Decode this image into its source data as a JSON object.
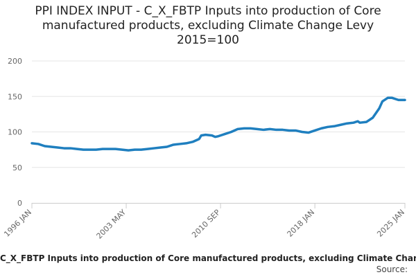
{
  "chart_data": {
    "type": "line",
    "title_lines": [
      "PPI INDEX INPUT - C_X_FBTP Inputs into production of Core",
      "manufactured products, excluding Climate Change Levy",
      "2015=100"
    ],
    "xlabel": "",
    "ylabel": "",
    "ylim": [
      0,
      200
    ],
    "y_ticks": [
      "0",
      "50",
      "100",
      "150",
      "200"
    ],
    "x_tick_labels": [
      "1996 JAN",
      "2003 MAY",
      "2010 SEP",
      "2018 JAN",
      "2025 JAN"
    ],
    "x_range": [
      "1996 JAN",
      "2025 JAN"
    ],
    "grid": true,
    "series": [
      {
        "name": "C_X_FBTP Inputs into production of Core manufactured products, excluding Climate Change Levy",
        "color": "#1f7fbf",
        "points": [
          [
            "1996-01",
            84
          ],
          [
            "1996-07",
            83
          ],
          [
            "1997-01",
            80
          ],
          [
            "1997-07",
            79
          ],
          [
            "1998-01",
            78
          ],
          [
            "1998-07",
            77
          ],
          [
            "1999-01",
            77
          ],
          [
            "1999-07",
            76
          ],
          [
            "2000-01",
            75
          ],
          [
            "2000-07",
            75
          ],
          [
            "2001-01",
            75
          ],
          [
            "2001-07",
            76
          ],
          [
            "2002-01",
            76
          ],
          [
            "2002-07",
            76
          ],
          [
            "2003-01",
            75
          ],
          [
            "2003-07",
            74
          ],
          [
            "2004-01",
            75
          ],
          [
            "2004-07",
            75
          ],
          [
            "2005-01",
            76
          ],
          [
            "2005-07",
            77
          ],
          [
            "2006-01",
            78
          ],
          [
            "2006-07",
            79
          ],
          [
            "2007-01",
            82
          ],
          [
            "2007-07",
            83
          ],
          [
            "2008-01",
            84
          ],
          [
            "2008-07",
            86
          ],
          [
            "2009-01",
            90
          ],
          [
            "2009-03",
            95
          ],
          [
            "2009-07",
            96
          ],
          [
            "2010-01",
            95
          ],
          [
            "2010-04",
            93
          ],
          [
            "2010-07",
            94
          ],
          [
            "2011-01",
            97
          ],
          [
            "2011-07",
            100
          ],
          [
            "2012-01",
            104
          ],
          [
            "2012-07",
            105
          ],
          [
            "2013-01",
            105
          ],
          [
            "2013-07",
            104
          ],
          [
            "2014-01",
            103
          ],
          [
            "2014-07",
            104
          ],
          [
            "2015-01",
            103
          ],
          [
            "2015-07",
            103
          ],
          [
            "2016-01",
            102
          ],
          [
            "2016-07",
            102
          ],
          [
            "2017-01",
            100
          ],
          [
            "2017-07",
            99
          ],
          [
            "2018-01",
            102
          ],
          [
            "2018-07",
            105
          ],
          [
            "2019-01",
            107
          ],
          [
            "2019-07",
            108
          ],
          [
            "2020-01",
            110
          ],
          [
            "2020-07",
            112
          ],
          [
            "2021-01",
            113
          ],
          [
            "2021-05",
            115
          ],
          [
            "2021-07",
            113
          ],
          [
            "2022-01",
            114
          ],
          [
            "2022-07",
            120
          ],
          [
            "2023-01",
            133
          ],
          [
            "2023-04",
            143
          ],
          [
            "2023-09",
            148
          ],
          [
            "2024-01",
            148
          ],
          [
            "2024-07",
            145
          ],
          [
            "2025-01",
            145
          ]
        ]
      }
    ],
    "source_label": "Source:"
  }
}
